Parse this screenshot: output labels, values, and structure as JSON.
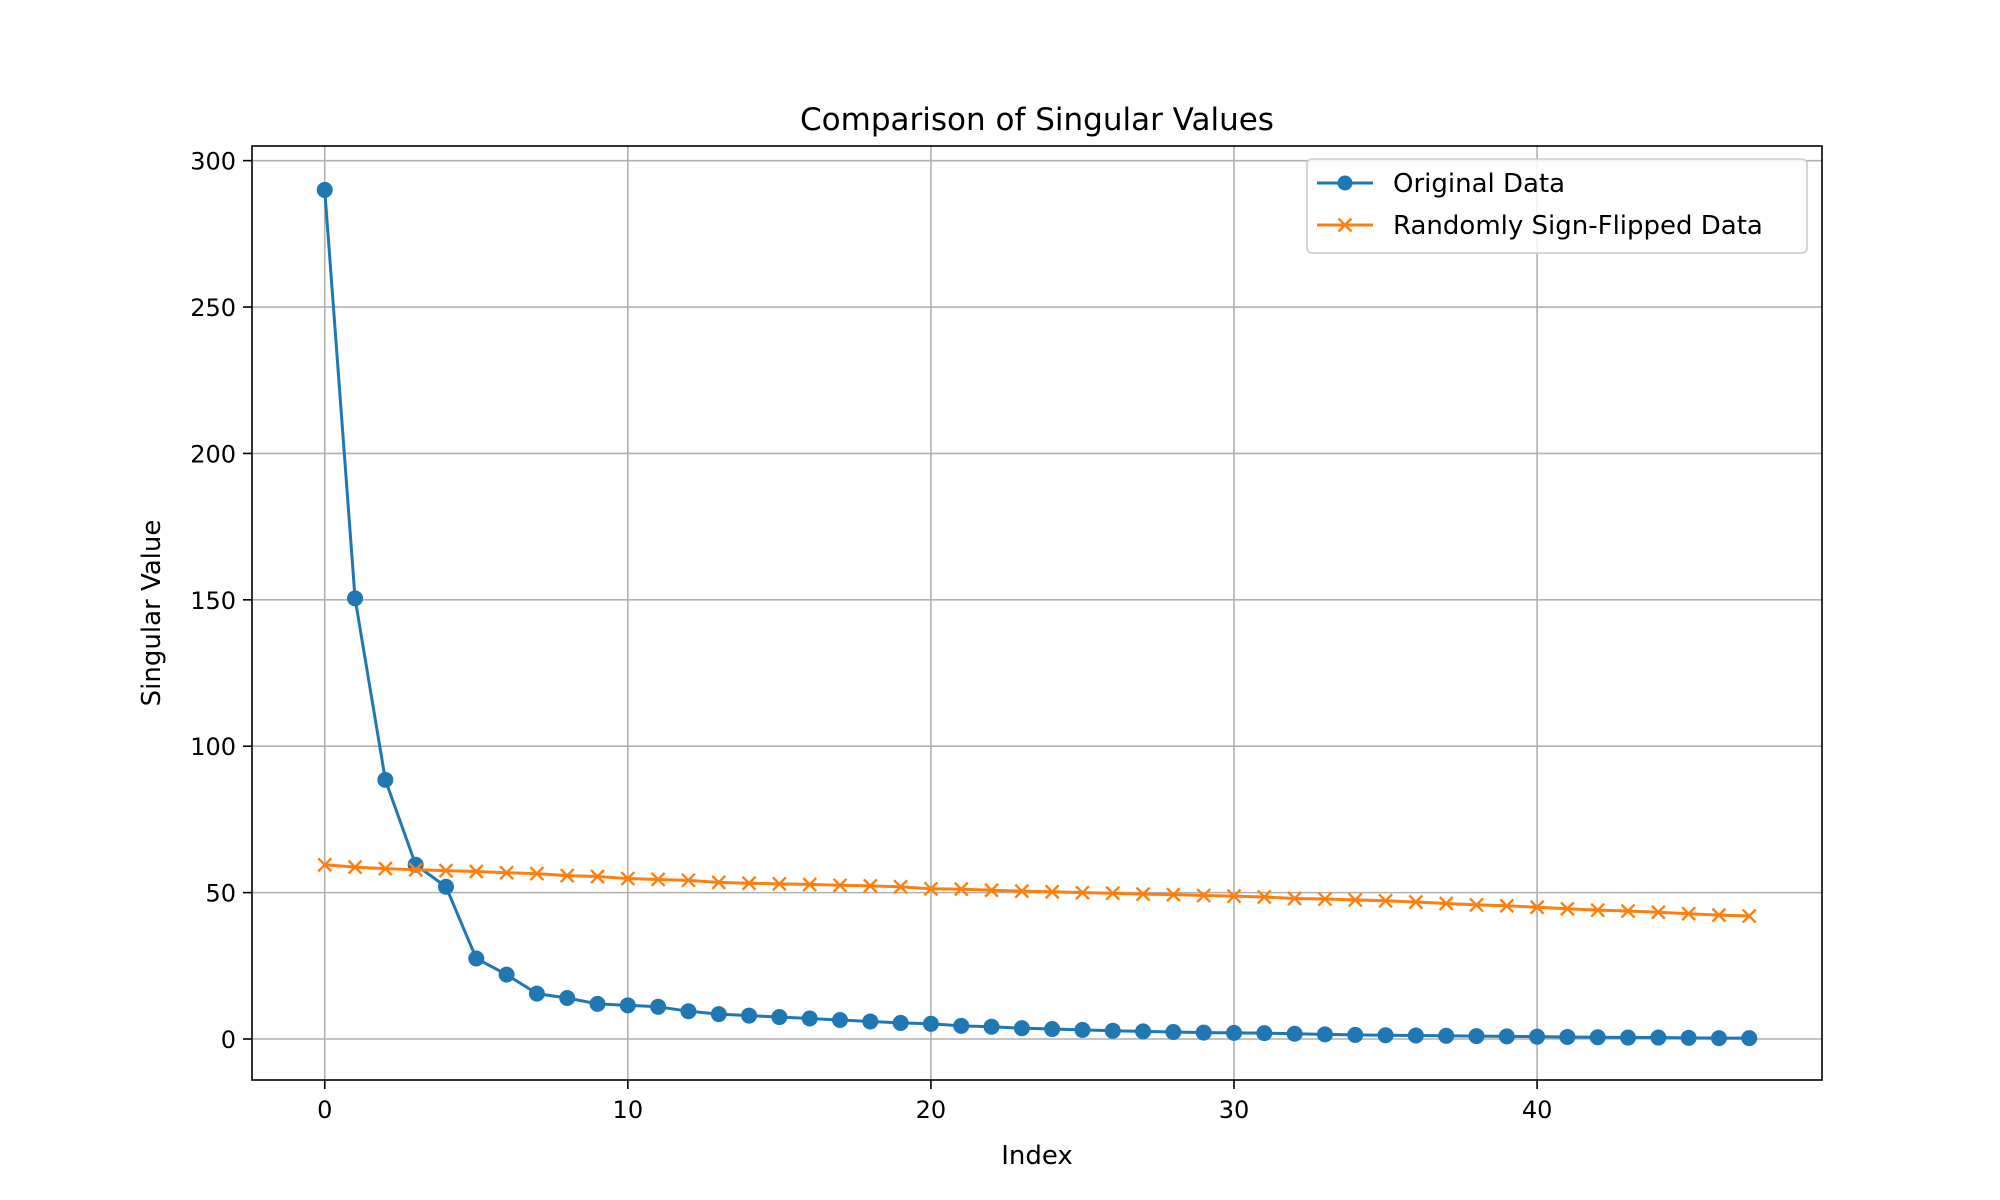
{
  "chart_data": {
    "type": "line",
    "title": "Comparison of Singular Values",
    "xlabel": "Index",
    "ylabel": "Singular Value",
    "xlim": [
      -2.4,
      49.4
    ],
    "ylim": [
      -14,
      305
    ],
    "xticks": [
      0,
      10,
      20,
      30,
      40
    ],
    "yticks": [
      0,
      50,
      100,
      150,
      200,
      250,
      300
    ],
    "grid": true,
    "legend_position": "top-right",
    "x": [
      0,
      1,
      2,
      3,
      4,
      5,
      6,
      7,
      8,
      9,
      10,
      11,
      12,
      13,
      14,
      15,
      16,
      17,
      18,
      19,
      20,
      21,
      22,
      23,
      24,
      25,
      26,
      27,
      28,
      29,
      30,
      31,
      32,
      33,
      34,
      35,
      36,
      37,
      38,
      39,
      40,
      41,
      42,
      43,
      44,
      45,
      46,
      47
    ],
    "series": [
      {
        "name": "Original Data",
        "color": "#1f77b4",
        "marker": "circle",
        "values": [
          290,
          150.5,
          88.5,
          59.5,
          52,
          27.5,
          22,
          15.5,
          14,
          12,
          11.5,
          11,
          9.5,
          8.5,
          8,
          7.5,
          7,
          6.5,
          6,
          5.5,
          5.2,
          4.5,
          4.2,
          3.7,
          3.4,
          3.1,
          2.8,
          2.6,
          2.4,
          2.2,
          2.1,
          2.0,
          1.8,
          1.6,
          1.4,
          1.3,
          1.2,
          1.1,
          1.0,
          0.9,
          0.8,
          0.7,
          0.6,
          0.5,
          0.5,
          0.4,
          0.3,
          0.3
        ]
      },
      {
        "name": "Randomly Sign-Flipped Data",
        "color": "#ff7f0e",
        "marker": "x",
        "values": [
          59.5,
          58.7,
          58.2,
          57.8,
          57.5,
          57.2,
          56.8,
          56.5,
          55.8,
          55.5,
          54.8,
          54.5,
          54.2,
          53.5,
          53.2,
          53.0,
          52.8,
          52.5,
          52.3,
          52.0,
          51.3,
          51.2,
          50.8,
          50.5,
          50.3,
          50.0,
          49.8,
          49.5,
          49.3,
          49.0,
          48.8,
          48.5,
          48.0,
          47.8,
          47.5,
          47.2,
          46.8,
          46.3,
          45.8,
          45.5,
          45.0,
          44.5,
          44.0,
          43.7,
          43.3,
          42.8,
          42.3,
          42.0
        ]
      }
    ]
  }
}
